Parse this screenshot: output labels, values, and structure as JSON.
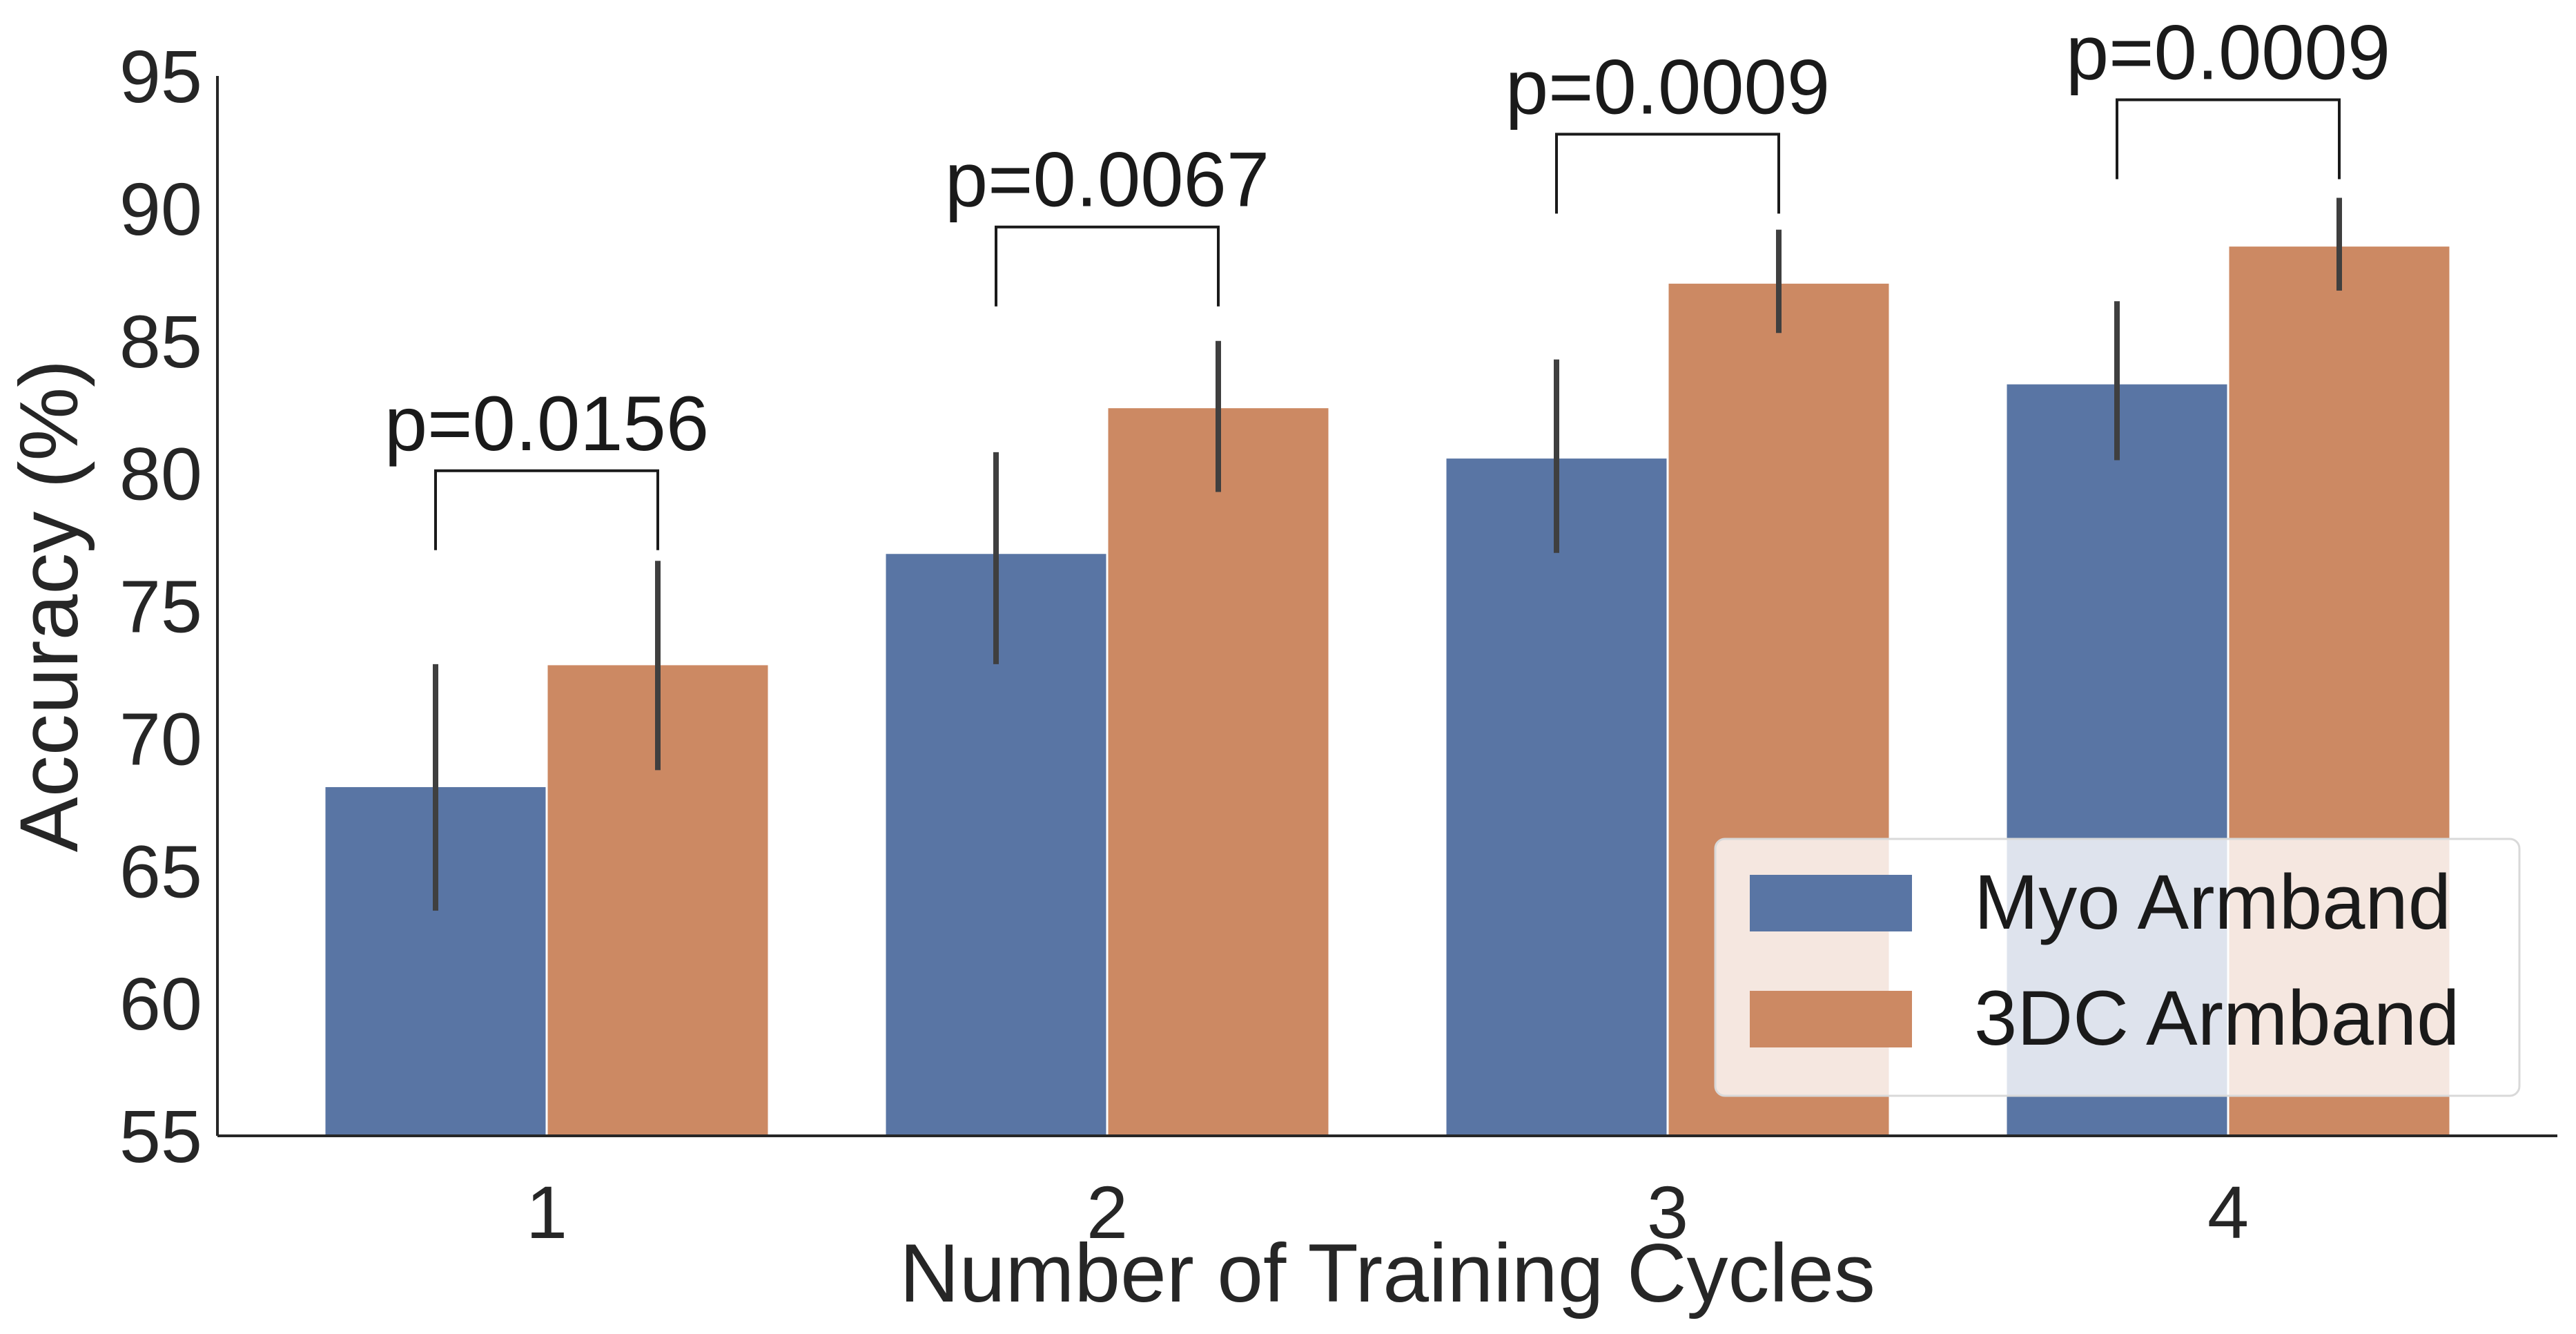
{
  "chart_data": {
    "type": "bar",
    "xlabel": "Number of Training Cycles",
    "ylabel": "Accuracy (%)",
    "ylim": [
      55,
      95
    ],
    "yticks": [
      "55",
      "60",
      "65",
      "70",
      "75",
      "80",
      "85",
      "90",
      "95"
    ],
    "categories": [
      "1",
      "2",
      "3",
      "4"
    ],
    "series": [
      {
        "name": "Myo Armband",
        "color": "#5975a4",
        "values": [
          68.2,
          77.0,
          80.6,
          83.4
        ],
        "err_low": [
          63.5,
          72.8,
          77.0,
          80.5
        ],
        "err_high": [
          72.8,
          80.8,
          84.3,
          86.5
        ]
      },
      {
        "name": "3DC Armband",
        "color": "#cc8963",
        "values": [
          72.8,
          82.5,
          87.2,
          88.6
        ],
        "err_low": [
          68.8,
          79.3,
          85.3,
          86.9
        ],
        "err_high": [
          76.7,
          85.0,
          89.2,
          90.4
        ]
      }
    ],
    "significance": [
      {
        "category": "1",
        "label": "p=0.0156",
        "bracket_y": 80.1
      },
      {
        "category": "2",
        "label": "p=0.0067",
        "bracket_y": 89.3
      },
      {
        "category": "3",
        "label": "p=0.0009",
        "bracket_y": 92.8
      },
      {
        "category": "4",
        "label": "p=0.0009",
        "bracket_y": 94.1
      }
    ],
    "legend_position": "lower-right",
    "grid": false
  }
}
